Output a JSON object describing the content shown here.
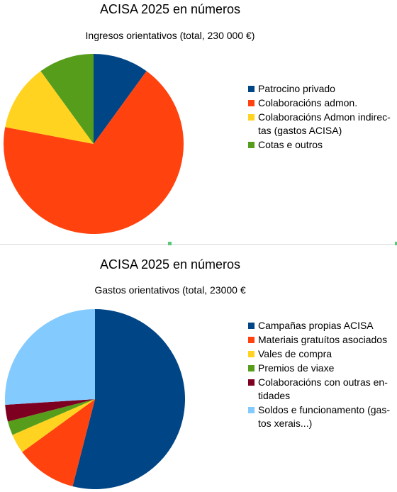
{
  "chart_data": [
    {
      "type": "pie",
      "title": "ACISA 2025 en números",
      "subtitle": "Ingresos orientativos (total, 230 000 €)",
      "legend_position": "right",
      "labels": [
        "Patrocino privado",
        "Colaboracións admon.",
        "Colaboracións Admon indirec-tas (gastos ACISA)",
        "Cotas e outros"
      ],
      "values": [
        10,
        68,
        12,
        10
      ],
      "colors": [
        "#004586",
        "#ff420e",
        "#ffd320",
        "#579d1c"
      ]
    },
    {
      "type": "pie",
      "title": "ACISA 2025 en números",
      "subtitle": "Gastos orientativos (total, 23000 €",
      "legend_position": "right",
      "labels": [
        "Campañas propias ACISA",
        "Materiais gratuítos asociados",
        "Vales de compra",
        "Premios de viaxe",
        "Colaboracións con outras en-tidades",
        "Soldos e funcionamento (gas-tos xerais...)"
      ],
      "values": [
        54,
        11,
        3.5,
        2.5,
        3,
        26
      ],
      "colors": [
        "#004586",
        "#ff420e",
        "#ffd320",
        "#579d1c",
        "#7e0021",
        "#83caff"
      ]
    }
  ],
  "legend_lines": [
    [
      [
        "Patrocino privado"
      ],
      [
        "Colaboracións admon."
      ],
      [
        "Colaboracións Admon indirec-",
        "tas (gastos ACISA)"
      ],
      [
        "Cotas e outros"
      ]
    ],
    [
      [
        "Campañas propias ACISA"
      ],
      [
        "Materiais gratuítos asociados"
      ],
      [
        "Vales de compra"
      ],
      [
        "Premios de viaxe"
      ],
      [
        "Colaboracións con outras en-",
        "tidades"
      ],
      [
        "Soldos e funcionamento (gas-",
        "tos xerais...)"
      ]
    ]
  ]
}
